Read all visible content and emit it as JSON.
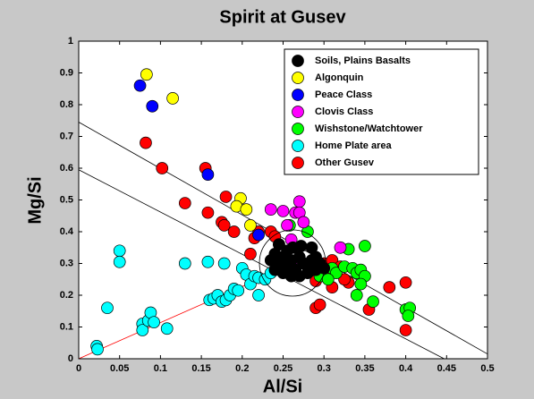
{
  "chart_data": {
    "type": "scatter",
    "title": "Spirit at Gusev",
    "x_label": "Al/Si",
    "y_label": "Mg/Si",
    "xlim": [
      0,
      0.5
    ],
    "ylim": [
      0,
      1
    ],
    "xticks": [
      0,
      0.05,
      0.1,
      0.15,
      0.2,
      0.25,
      0.3,
      0.35,
      0.4,
      0.45,
      0.5
    ],
    "yticks": [
      0,
      0.1,
      0.2,
      0.3,
      0.4,
      0.5,
      0.6,
      0.7,
      0.8,
      0.9,
      1
    ],
    "legend": "upper right",
    "lines": [
      {
        "color": "#000000",
        "x": [
          0,
          0.5
        ],
        "y": [
          0.745,
          0.015
        ]
      },
      {
        "color": "#000000",
        "x": [
          0,
          0.447
        ],
        "y": [
          0.595,
          0
        ]
      },
      {
        "color": "#ff0000",
        "x": [
          0,
          0.255
        ],
        "y": [
          0,
          0.29
        ]
      }
    ],
    "series": [
      {
        "name": "Home Plate area",
        "color": "#00ffff",
        "x": [
          0.022,
          0.023,
          0.035,
          0.05,
          0.05,
          0.078,
          0.078,
          0.085,
          0.088,
          0.092,
          0.108,
          0.13,
          0.158,
          0.16,
          0.165,
          0.17,
          0.175,
          0.18,
          0.185,
          0.19,
          0.195,
          0.2,
          0.205,
          0.21,
          0.215,
          0.22,
          0.22,
          0.178,
          0.228,
          0.235
        ],
        "values": [
          0.04,
          0.03,
          0.16,
          0.34,
          0.305,
          0.11,
          0.09,
          0.12,
          0.145,
          0.115,
          0.095,
          0.3,
          0.305,
          0.185,
          0.19,
          0.2,
          0.18,
          0.185,
          0.2,
          0.22,
          0.215,
          0.285,
          0.265,
          0.235,
          0.26,
          0.2,
          0.255,
          0.3,
          0.25,
          0.27
        ]
      },
      {
        "name": "Other Gusev",
        "color": "#ff0000",
        "x": [
          0.082,
          0.102,
          0.155,
          0.158,
          0.13,
          0.175,
          0.18,
          0.178,
          0.19,
          0.21,
          0.22,
          0.235,
          0.24,
          0.215,
          0.245,
          0.3,
          0.3,
          0.31,
          0.32,
          0.33,
          0.31,
          0.29,
          0.295,
          0.355,
          0.38,
          0.4,
          0.4,
          0.29,
          0.31,
          0.325
        ],
        "values": [
          0.68,
          0.6,
          0.6,
          0.46,
          0.49,
          0.43,
          0.51,
          0.42,
          0.4,
          0.33,
          0.4,
          0.4,
          0.385,
          0.38,
          0.36,
          0.3,
          0.26,
          0.31,
          0.29,
          0.24,
          0.225,
          0.16,
          0.17,
          0.155,
          0.225,
          0.24,
          0.09,
          0.245,
          0.28,
          0.25
        ]
      },
      {
        "name": "Wishstone/Watchtower",
        "color": "#00ff00",
        "x": [
          0.258,
          0.28,
          0.33,
          0.35,
          0.31,
          0.315,
          0.325,
          0.335,
          0.34,
          0.345,
          0.35,
          0.345,
          0.34,
          0.36,
          0.4,
          0.405,
          0.403,
          0.295,
          0.305,
          0.255
        ],
        "values": [
          0.42,
          0.4,
          0.345,
          0.355,
          0.285,
          0.27,
          0.29,
          0.285,
          0.27,
          0.28,
          0.26,
          0.235,
          0.2,
          0.18,
          0.155,
          0.16,
          0.135,
          0.26,
          0.25,
          0.29
        ]
      },
      {
        "name": "Clovis Class",
        "color": "#ff00ff",
        "x": [
          0.235,
          0.25,
          0.265,
          0.27,
          0.27,
          0.275,
          0.255,
          0.26,
          0.25,
          0.32,
          0.26
        ],
        "values": [
          0.47,
          0.465,
          0.46,
          0.495,
          0.46,
          0.43,
          0.42,
          0.375,
          0.3,
          0.35,
          0.3
        ]
      },
      {
        "name": "Soils, Plains Basalts",
        "color": "#000000",
        "x": [
          0.24,
          0.245,
          0.25,
          0.255,
          0.26,
          0.265,
          0.27,
          0.275,
          0.28,
          0.285,
          0.29,
          0.295,
          0.25,
          0.26,
          0.27,
          0.28,
          0.245,
          0.262,
          0.285,
          0.272,
          0.252,
          0.24,
          0.29,
          0.3,
          0.235
        ],
        "values": [
          0.33,
          0.3,
          0.32,
          0.34,
          0.31,
          0.28,
          0.32,
          0.3,
          0.29,
          0.31,
          0.28,
          0.3,
          0.27,
          0.26,
          0.26,
          0.27,
          0.36,
          0.35,
          0.35,
          0.355,
          0.29,
          0.28,
          0.32,
          0.285,
          0.31
        ]
      },
      {
        "name": "Algonquin",
        "color": "#ffff00",
        "x": [
          0.083,
          0.115,
          0.198,
          0.193,
          0.205,
          0.21
        ],
        "values": [
          0.895,
          0.82,
          0.505,
          0.48,
          0.47,
          0.42
        ]
      },
      {
        "name": "Peace Class",
        "color": "#0000ff",
        "x": [
          0.075,
          0.09,
          0.158,
          0.22
        ],
        "values": [
          0.86,
          0.795,
          0.58,
          0.39
        ]
      }
    ],
    "legend_order": [
      "Soils, Plains Basalts",
      "Algonquin",
      "Peace Class",
      "Clovis Class",
      "Wishstone/Watchtower",
      "Home Plate area",
      "Other Gusev"
    ]
  }
}
